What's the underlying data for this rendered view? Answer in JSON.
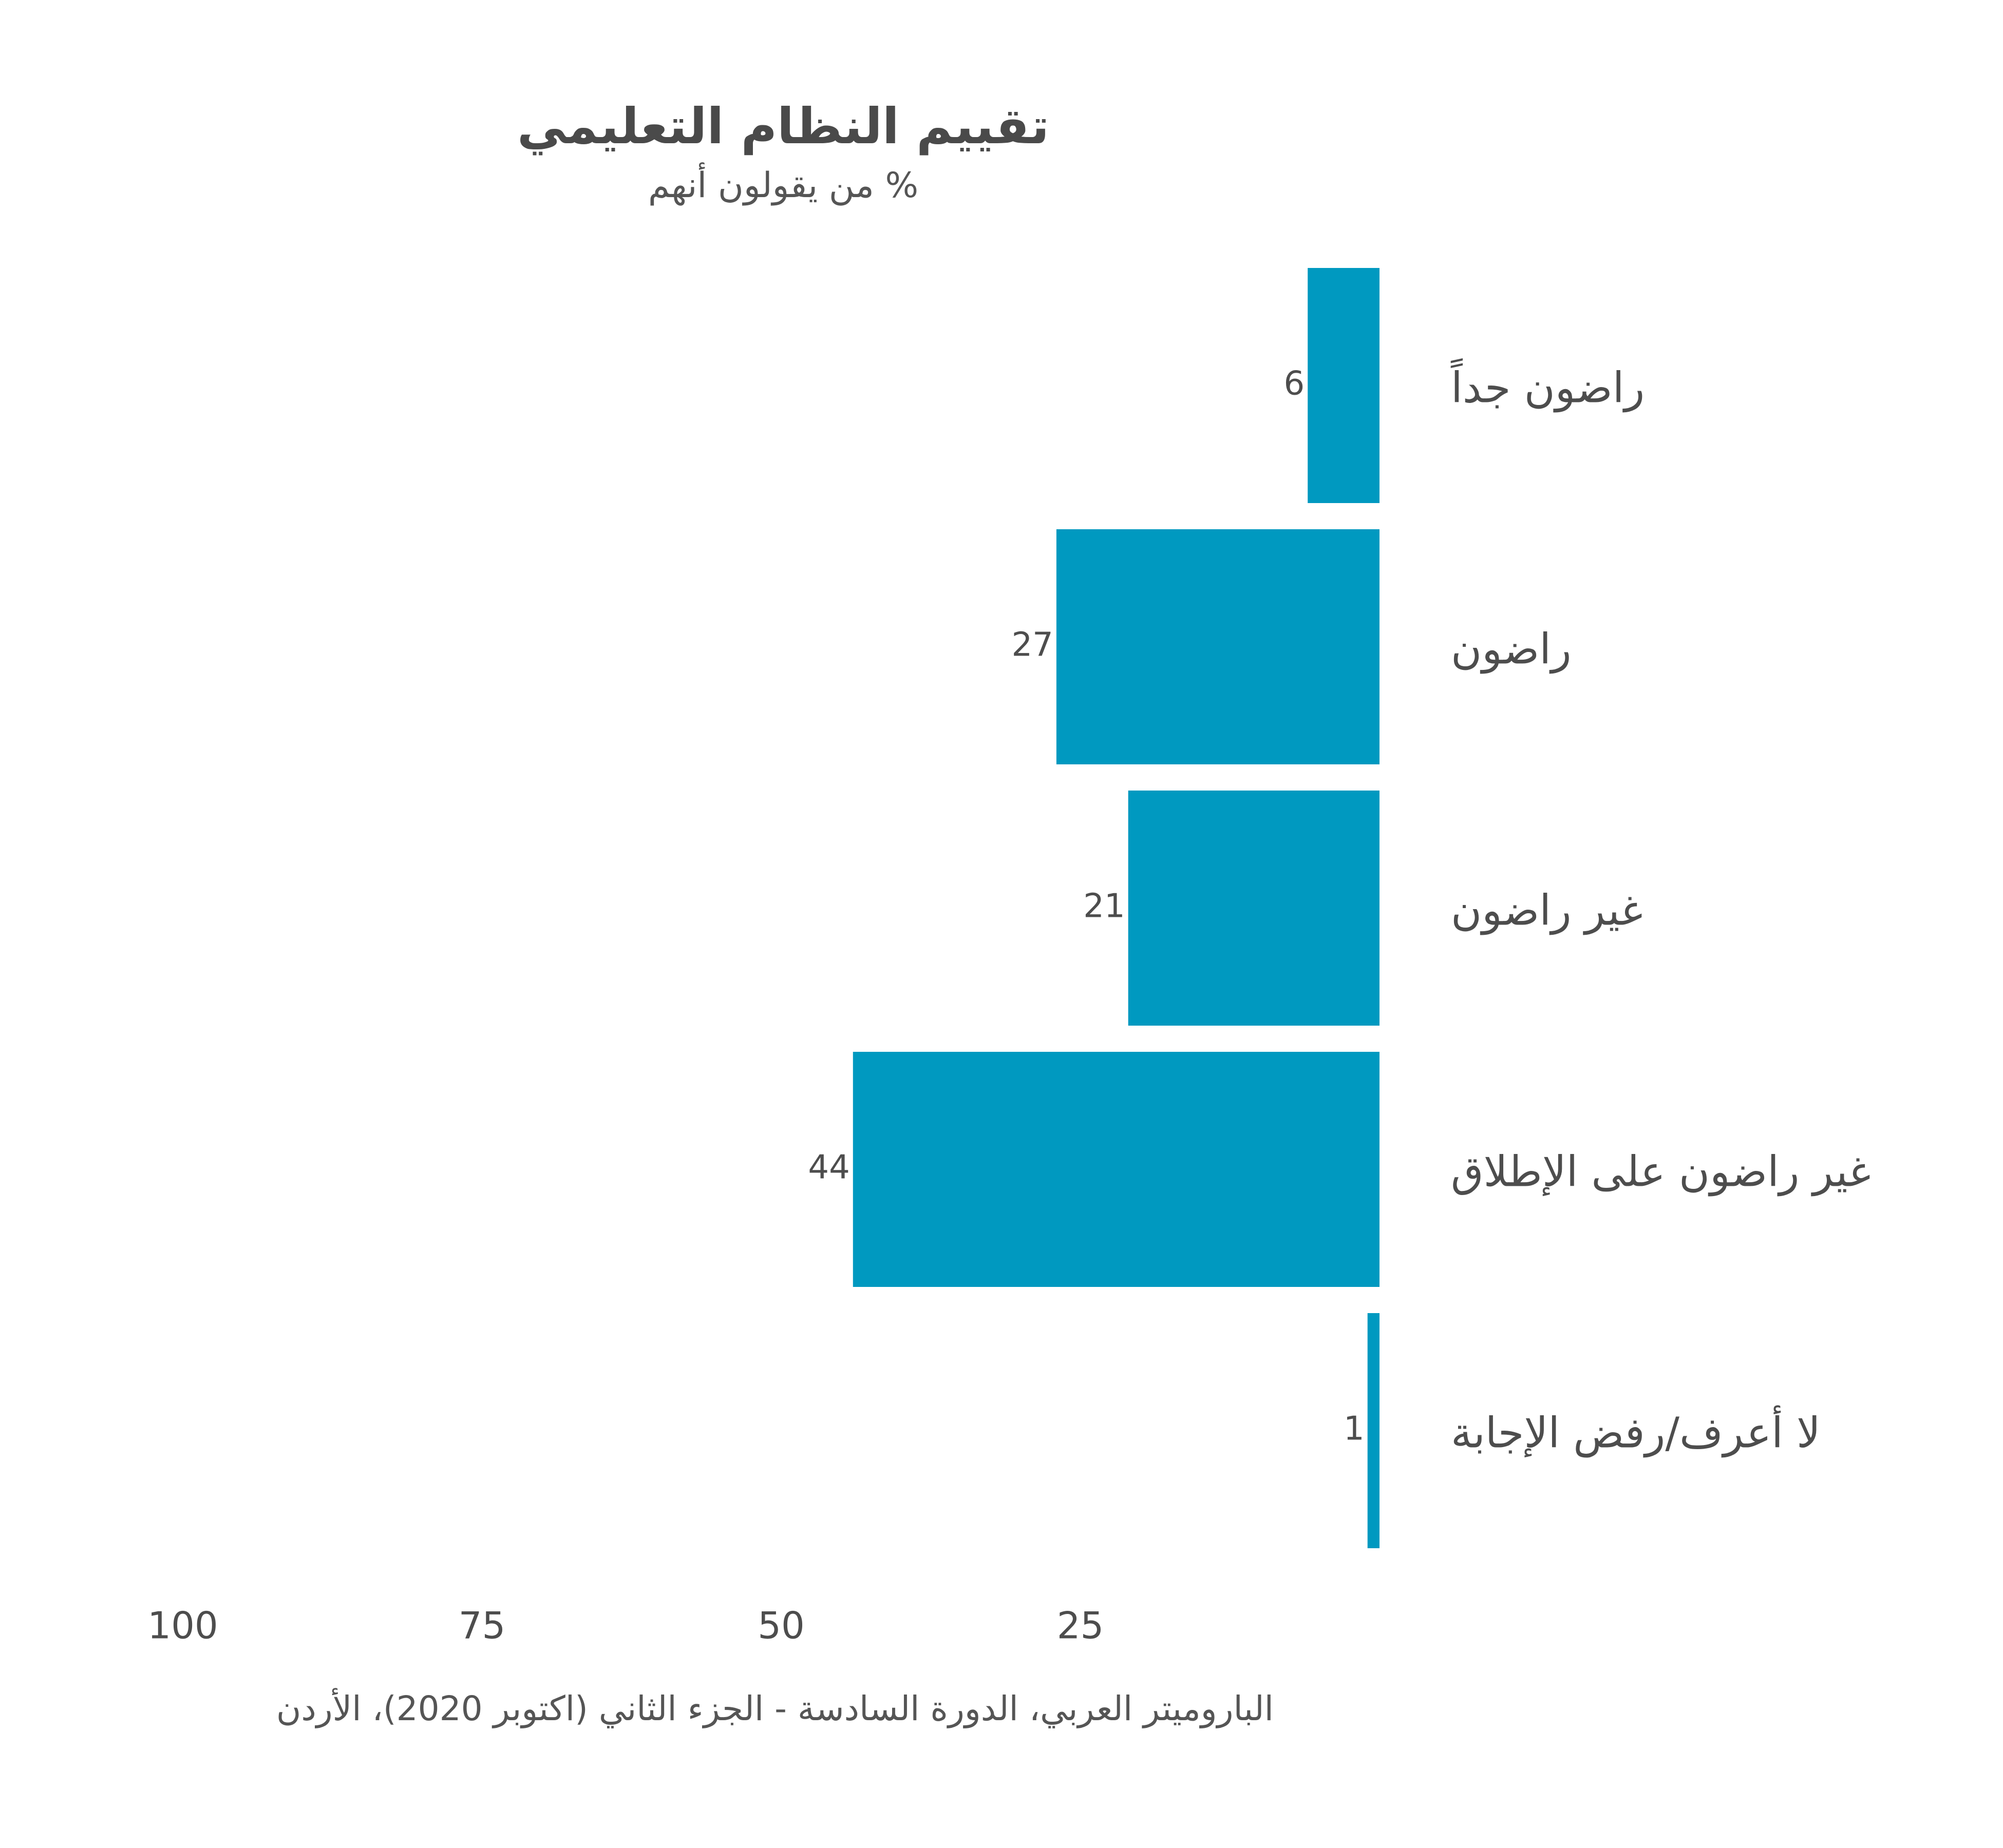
{
  "chart_data": {
    "type": "bar",
    "orientation": "horizontal",
    "title": "تقييم النظام التعليمي",
    "subtitle": "% من يقولون أنهم",
    "categories": [
      "راضون جداً",
      "راضون",
      "غير راضون",
      "غير راضون على الإطلاق",
      "لا أعرف/رفض الإجابة"
    ],
    "values": [
      6,
      27,
      21,
      44,
      1
    ],
    "x_ticks": [
      100,
      75,
      50,
      25
    ],
    "xlim": [
      0,
      100
    ],
    "x_direction": "reversed",
    "grid": false,
    "source": "الباروميتر العربي، الدورة السادسة - الجزء الثاني (اكتوبر 2020)، الأردن",
    "bar_color": "#0099c0"
  }
}
